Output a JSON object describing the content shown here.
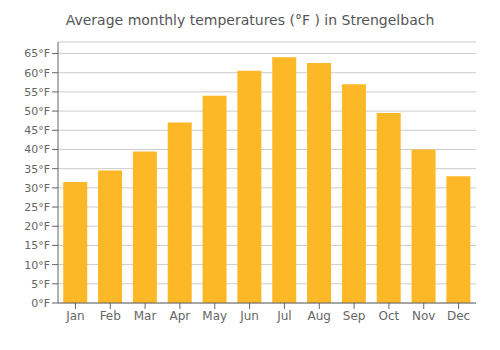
{
  "chart_data": {
    "type": "bar",
    "title": "Average monthly temperatures (°F ) in Strengelbach",
    "categories": [
      "Jan",
      "Feb",
      "Mar",
      "Apr",
      "May",
      "Jun",
      "Jul",
      "Aug",
      "Sep",
      "Oct",
      "Nov",
      "Dec"
    ],
    "values": [
      31.5,
      34.5,
      39.5,
      47.0,
      54.0,
      60.5,
      64.0,
      62.5,
      57.0,
      49.5,
      40.0,
      33.0
    ],
    "color": "#FDB827",
    "ylim": [
      0,
      68
    ],
    "yticks": [
      {
        "value": 0,
        "label": "0°F"
      },
      {
        "value": 5,
        "label": "5°F"
      },
      {
        "value": 10,
        "label": "10°F"
      },
      {
        "value": 15,
        "label": "15°F"
      },
      {
        "value": 20,
        "label": "20°F"
      },
      {
        "value": 25,
        "label": "25°F"
      },
      {
        "value": 30,
        "label": "30°F"
      },
      {
        "value": 35,
        "label": "35°F"
      },
      {
        "value": 40,
        "label": "40°F"
      },
      {
        "value": 45,
        "label": "45°F"
      },
      {
        "value": 50,
        "label": "50°F"
      },
      {
        "value": 55,
        "label": "55°F"
      },
      {
        "value": 60,
        "label": "60°F"
      },
      {
        "value": 65,
        "label": "65°F"
      }
    ],
    "grid": true
  }
}
